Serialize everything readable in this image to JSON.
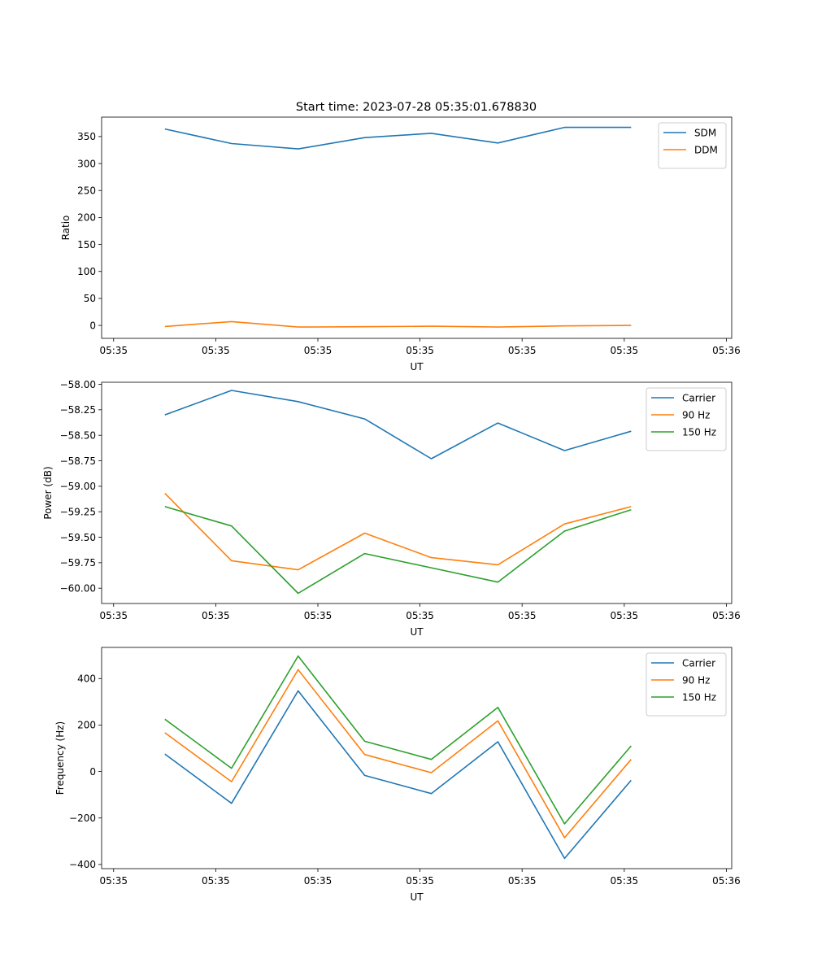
{
  "figure_title": "Start time: 2023-07-28 05:35:01.678830",
  "colors": {
    "blue": "#1f77b4",
    "orange": "#ff7f0e",
    "green": "#2ca02c"
  },
  "chart_data": [
    {
      "type": "line",
      "title": "Start time: 2023-07-28 05:35:01.678830",
      "xlabel": "UT",
      "ylabel": "Ratio",
      "xlim": [
        -0.38,
        9.08
      ],
      "ylim": [
        -24,
        386
      ],
      "x_ticks": [
        {
          "x": -0.2,
          "label": "05:35"
        },
        {
          "x": 1.333,
          "label": "05:35"
        },
        {
          "x": 2.867,
          "label": "05:35"
        },
        {
          "x": 4.4,
          "label": "05:35"
        },
        {
          "x": 5.933,
          "label": "05:35"
        },
        {
          "x": 7.467,
          "label": "05:35"
        },
        {
          "x": 9.0,
          "label": "05:36"
        }
      ],
      "y_ticks": [
        0,
        50,
        100,
        150,
        200,
        250,
        300,
        350
      ],
      "y_tick_labels": [
        "0",
        "50",
        "100",
        "150",
        "200",
        "250",
        "300",
        "350"
      ],
      "x": [
        0.57,
        1.57,
        2.57,
        3.57,
        4.57,
        5.57,
        6.57,
        7.57
      ],
      "series": [
        {
          "name": "SDM",
          "color": "#1f77b4",
          "values": [
            364,
            337,
            327,
            348,
            356,
            338,
            367,
            367
          ]
        },
        {
          "name": "DDM",
          "color": "#ff7f0e",
          "values": [
            -2,
            7,
            -3,
            -2.5,
            -1.5,
            -3,
            -1,
            0
          ]
        }
      ],
      "legend": "top-right"
    },
    {
      "type": "line",
      "title": "",
      "xlabel": "UT",
      "ylabel": "Power (dB)",
      "xlim": [
        -0.38,
        9.08
      ],
      "ylim": [
        -60.15,
        -57.98
      ],
      "x_ticks": [
        {
          "x": -0.2,
          "label": "05:35"
        },
        {
          "x": 1.333,
          "label": "05:35"
        },
        {
          "x": 2.867,
          "label": "05:35"
        },
        {
          "x": 4.4,
          "label": "05:35"
        },
        {
          "x": 5.933,
          "label": "05:35"
        },
        {
          "x": 7.467,
          "label": "05:35"
        },
        {
          "x": 9.0,
          "label": "05:36"
        }
      ],
      "y_ticks": [
        -60.0,
        -59.75,
        -59.5,
        -59.25,
        -59.0,
        -58.75,
        -58.5,
        -58.25,
        -58.0
      ],
      "y_tick_labels": [
        "−60.00",
        "−59.75",
        "−59.50",
        "−59.25",
        "−59.00",
        "−58.75",
        "−58.50",
        "−58.25",
        "−58.00"
      ],
      "x": [
        0.57,
        1.57,
        2.57,
        3.57,
        4.57,
        5.57,
        6.57,
        7.57
      ],
      "series": [
        {
          "name": "Carrier",
          "color": "#1f77b4",
          "values": [
            -58.3,
            -58.06,
            -58.17,
            -58.34,
            -58.73,
            -58.38,
            -58.65,
            -58.46
          ]
        },
        {
          "name": "90 Hz",
          "color": "#ff7f0e",
          "values": [
            -59.07,
            -59.73,
            -59.82,
            -59.46,
            -59.7,
            -59.77,
            -59.37,
            -59.2
          ]
        },
        {
          "name": "150 Hz",
          "color": "#2ca02c",
          "values": [
            -59.2,
            -59.39,
            -60.05,
            -59.66,
            -59.8,
            -59.94,
            -59.44,
            -59.23
          ]
        }
      ],
      "legend": "top-right"
    },
    {
      "type": "line",
      "title": "",
      "xlabel": "UT",
      "ylabel": "Frequency (Hz)",
      "xlim": [
        -0.38,
        9.08
      ],
      "ylim": [
        -418,
        534
      ],
      "x_ticks": [
        {
          "x": -0.2,
          "label": "05:35"
        },
        {
          "x": 1.333,
          "label": "05:35"
        },
        {
          "x": 2.867,
          "label": "05:35"
        },
        {
          "x": 4.4,
          "label": "05:35"
        },
        {
          "x": 5.933,
          "label": "05:35"
        },
        {
          "x": 7.467,
          "label": "05:35"
        },
        {
          "x": 9.0,
          "label": "05:36"
        }
      ],
      "y_ticks": [
        -400,
        -200,
        0,
        200,
        400
      ],
      "y_tick_labels": [
        "−400",
        "−200",
        "0",
        "200",
        "400"
      ],
      "x": [
        0.57,
        1.57,
        2.57,
        3.57,
        4.57,
        5.57,
        6.57,
        7.57
      ],
      "series": [
        {
          "name": "Carrier",
          "color": "#1f77b4",
          "values": [
            75,
            -137,
            347,
            -17,
            -95,
            128,
            -374,
            -38
          ]
        },
        {
          "name": "90 Hz",
          "color": "#ff7f0e",
          "values": [
            167,
            -44,
            438,
            73,
            -5,
            218,
            -285,
            52
          ]
        },
        {
          "name": "150 Hz",
          "color": "#2ca02c",
          "values": [
            225,
            14,
            497,
            130,
            52,
            276,
            -225,
            110
          ]
        }
      ],
      "legend": "top-right"
    }
  ]
}
